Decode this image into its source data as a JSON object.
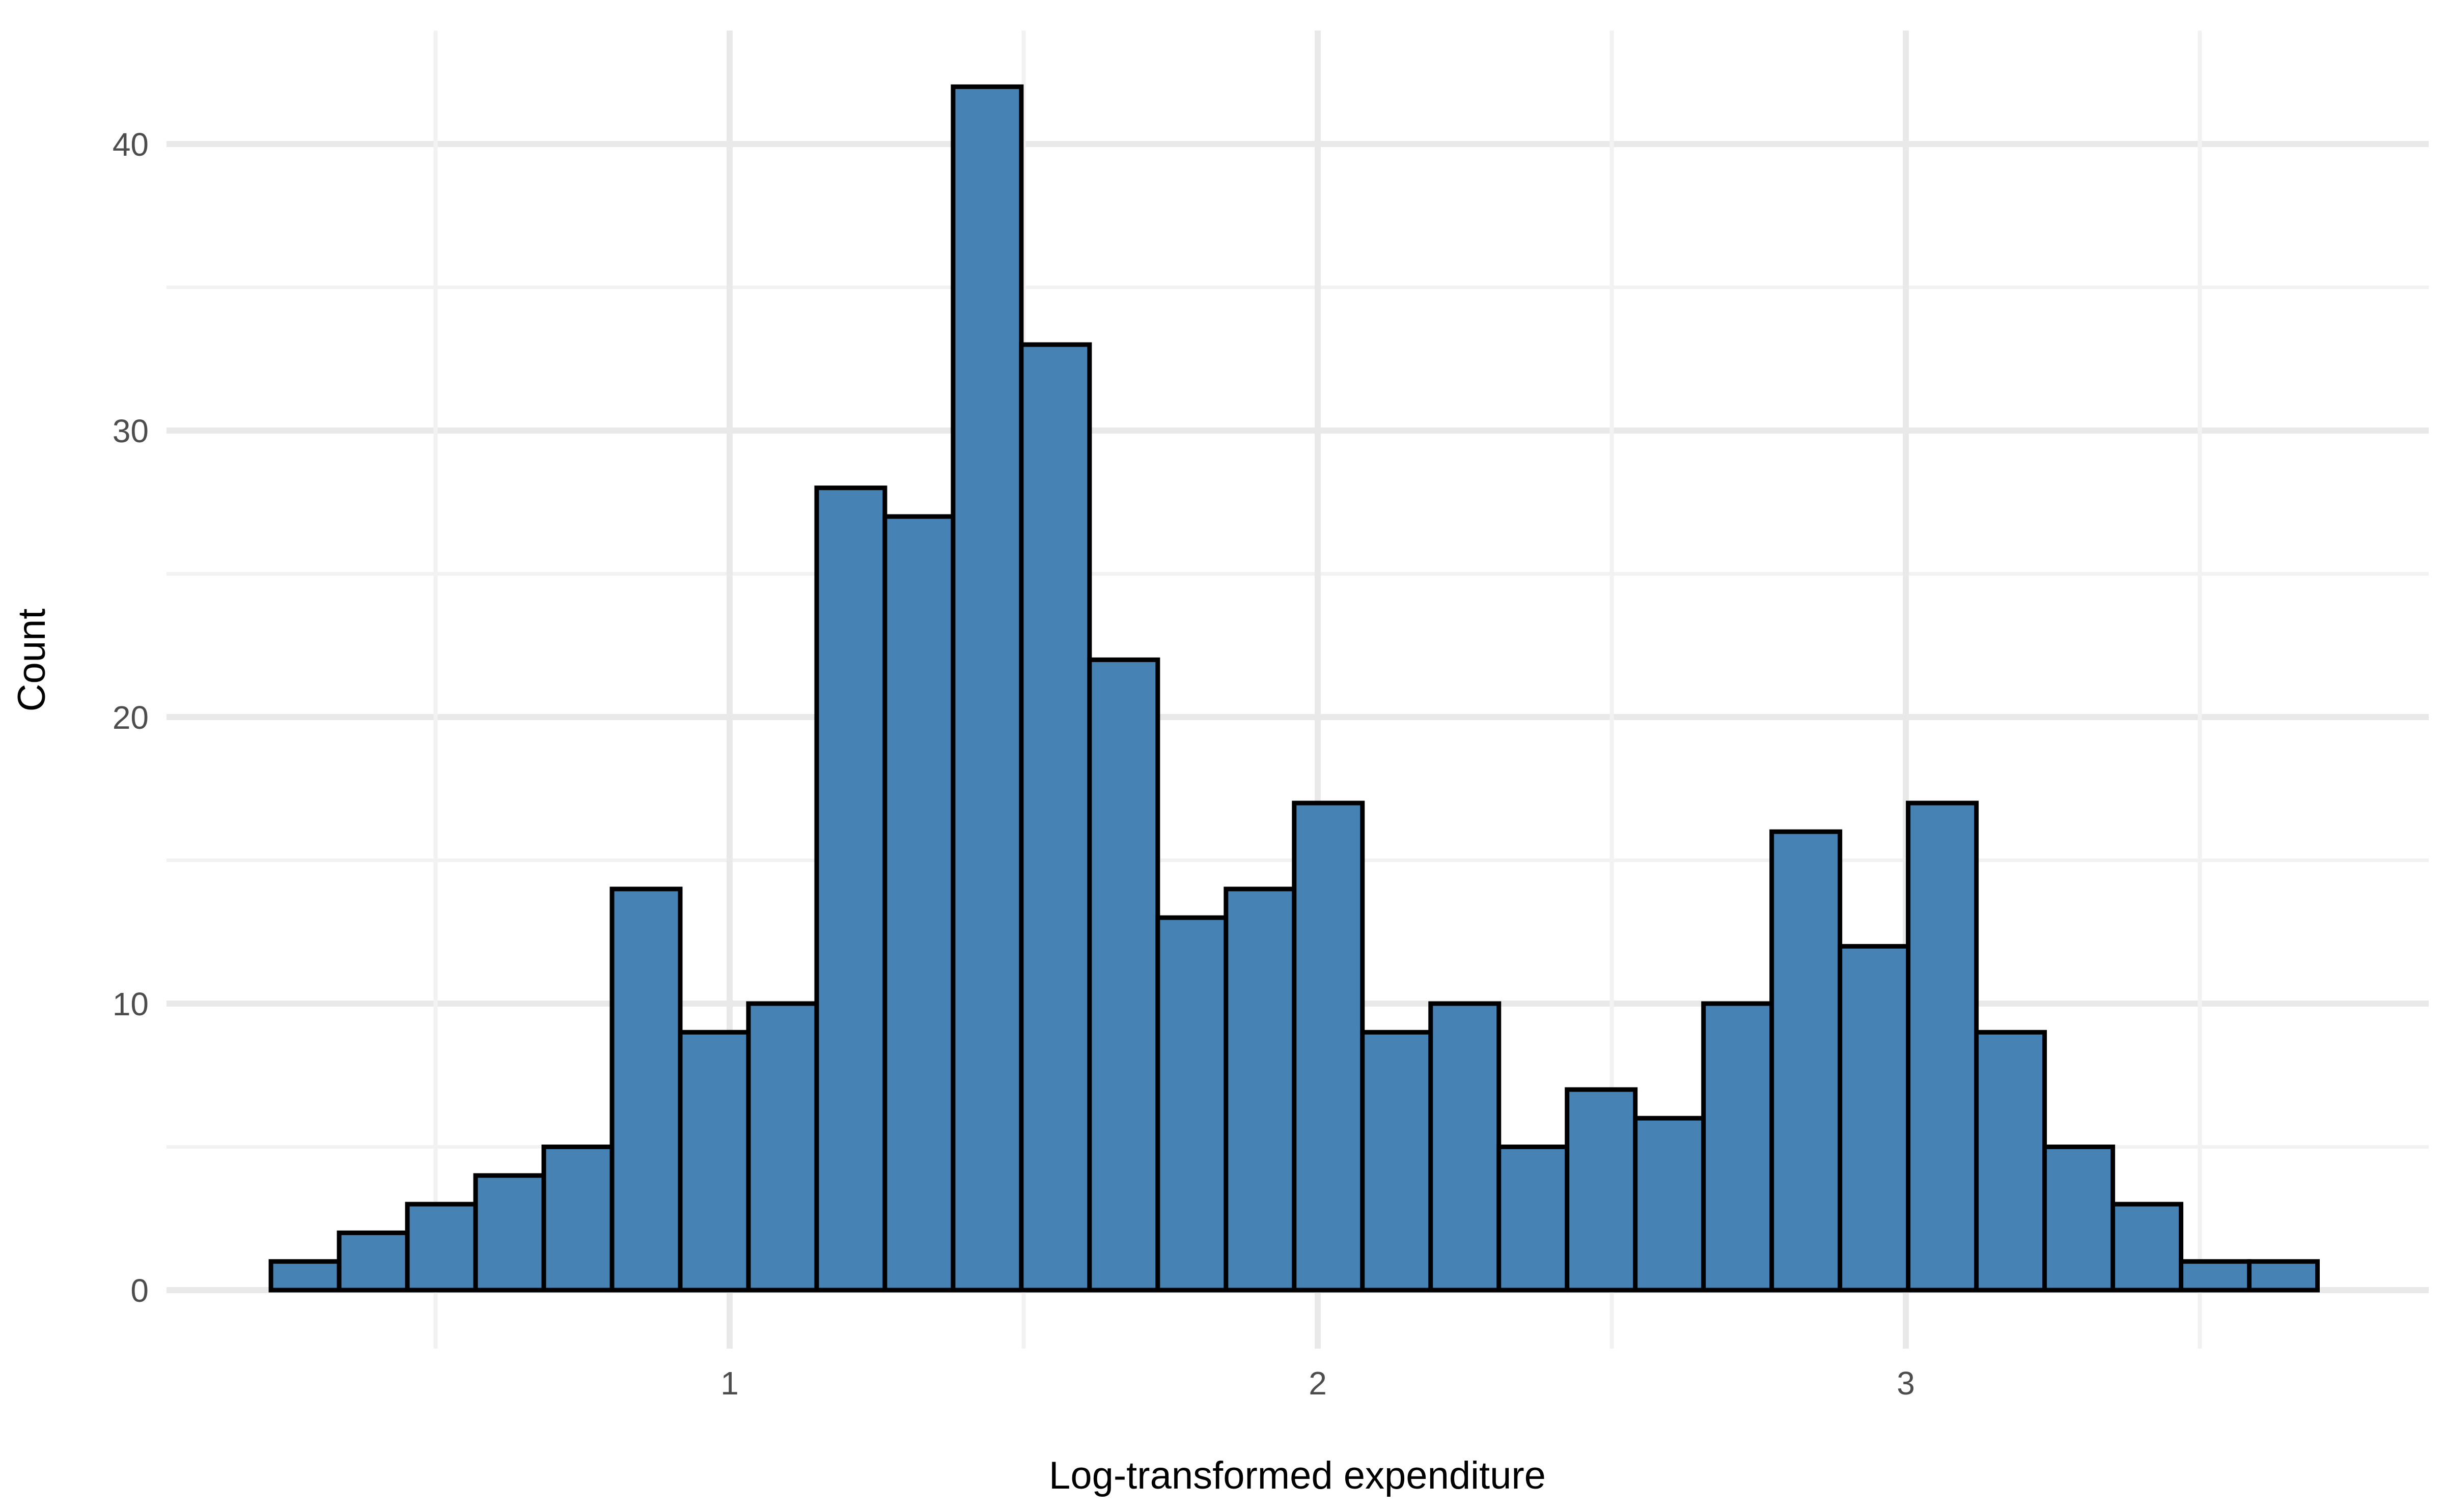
{
  "chart_data": {
    "type": "bar",
    "subtype": "histogram",
    "title": "",
    "xlabel": "Log-transformed expenditure",
    "ylabel": "Count",
    "bin_start": 0.22,
    "bin_width": 0.116,
    "counts": [
      1,
      2,
      3,
      4,
      5,
      14,
      9,
      10,
      28,
      27,
      42,
      33,
      22,
      13,
      14,
      17,
      9,
      10,
      5,
      7,
      6,
      10,
      16,
      12,
      17,
      9,
      5,
      3,
      1,
      1
    ],
    "n_total": 355,
    "x_tick_labels": [
      "1",
      "2",
      "3"
    ],
    "x_ticks": [
      1,
      2,
      3
    ],
    "x_minor_ticks": [
      0.5,
      1.5,
      2.5,
      3.5
    ],
    "y_tick_labels": [
      "0",
      "10",
      "20",
      "30",
      "40"
    ],
    "y_ticks": [
      0,
      10,
      20,
      30,
      40
    ],
    "y_minor_ticks": [
      5,
      15,
      25,
      35
    ],
    "xlim": [
      0.04,
      3.89
    ],
    "ylim": [
      0,
      44
    ],
    "grid": "on",
    "legend": "none",
    "colors": {
      "bar_fill": "#4682B4",
      "bar_stroke": "#000000",
      "grid_major": "#E9E9E9",
      "grid_minor": "#F2F2F2",
      "tick_label": "#4D4D4D",
      "axis_title": "#000000",
      "background": "#FFFFFF"
    }
  }
}
